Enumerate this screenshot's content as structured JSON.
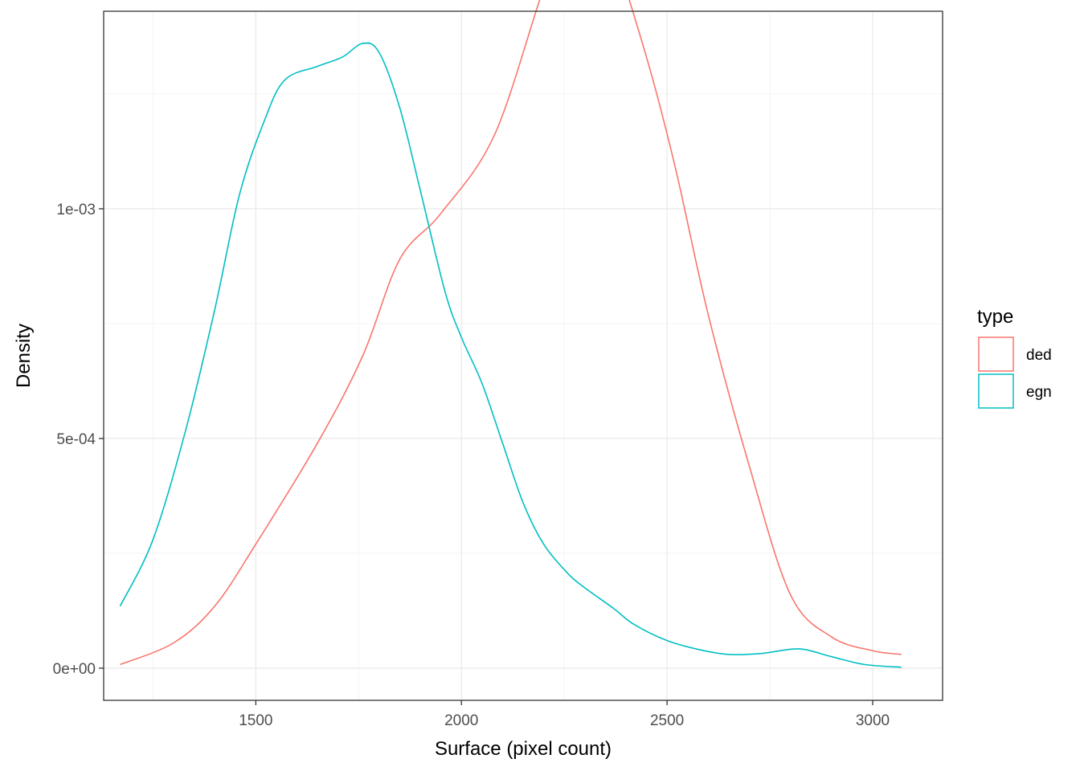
{
  "chart_data": {
    "type": "line",
    "title": "",
    "xlabel": "Surface (pixel count)",
    "ylabel": "Density",
    "xlim": [
      1130,
      3170
    ],
    "ylim": [
      -7e-05,
      0.00143
    ],
    "x_ticks": [
      1500,
      2000,
      2500,
      3000
    ],
    "x_tick_labels": [
      "1500",
      "2000",
      "2500",
      "3000"
    ],
    "y_ticks": [
      0,
      0.0005,
      0.001
    ],
    "y_tick_labels": [
      "0e+00",
      "5e-04",
      "1e-03"
    ],
    "grid": true,
    "legend": {
      "title": "type",
      "position": "right"
    },
    "series": [
      {
        "name": "ded",
        "color": "#F8766D",
        "x": [
          1170,
          1300,
          1400,
          1500,
          1650,
          1760,
          1850,
          1950,
          2080,
          2200,
          2260,
          2310,
          2360,
          2450,
          2520,
          2600,
          2700,
          2800,
          2900,
          3000,
          3070
        ],
        "y": [
          8e-06,
          5.5e-05,
          0.000135,
          0.00027,
          0.00049,
          0.00068,
          0.00089,
          0.00099,
          0.00116,
          0.00148,
          0.0016,
          0.00163,
          0.00158,
          0.00133,
          0.00109,
          0.00077,
          0.00044,
          0.00016,
          6.8e-05,
          3.8e-05,
          3e-05
        ]
      },
      {
        "name": "egn",
        "color": "#00BFC4",
        "x": [
          1170,
          1250,
          1330,
          1400,
          1460,
          1520,
          1570,
          1650,
          1710,
          1760,
          1800,
          1850,
          1900,
          1960,
          2000,
          2050,
          2100,
          2150,
          2200,
          2260,
          2300,
          2370,
          2420,
          2500,
          2580,
          2650,
          2730,
          2820,
          2900,
          2980,
          3070
        ],
        "y": [
          0.000135,
          0.00028,
          0.00052,
          0.00078,
          0.00103,
          0.00119,
          0.00128,
          0.00131,
          0.00133,
          0.00136,
          0.00134,
          0.00122,
          0.00104,
          0.00082,
          0.00072,
          0.00062,
          0.00049,
          0.00036,
          0.00027,
          0.000205,
          0.000175,
          0.00013,
          9.5e-05,
          6e-05,
          4e-05,
          3e-05,
          3.2e-05,
          4.2e-05,
          2.5e-05,
          8e-06,
          2e-06
        ]
      }
    ]
  }
}
